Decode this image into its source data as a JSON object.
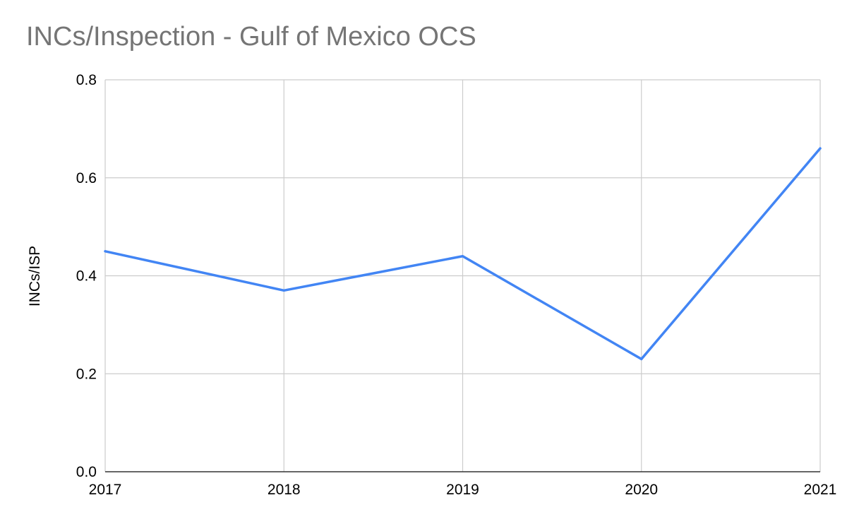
{
  "chart_data": {
    "type": "line",
    "title": "INCs/Inspection - Gulf of Mexico OCS",
    "xlabel": "",
    "ylabel": "INCs/ISP",
    "x": [
      "2017",
      "2018",
      "2019",
      "2020",
      "2021"
    ],
    "series": [
      {
        "values": [
          0.45,
          0.37,
          0.44,
          0.23,
          0.66
        ],
        "color": "#4285f4"
      }
    ],
    "ylim": [
      0,
      0.8
    ],
    "yticks": [
      "0.0",
      "0.2",
      "0.4",
      "0.6",
      "0.8"
    ],
    "grid": true,
    "legend": "none"
  }
}
